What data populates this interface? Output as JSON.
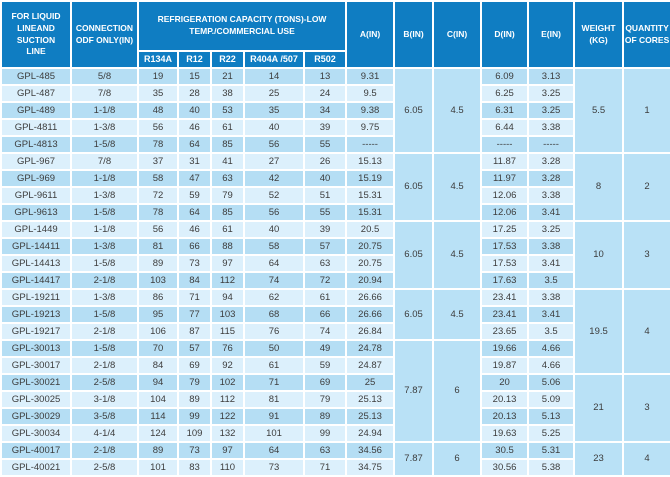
{
  "header": {
    "liquid_line": "FOR LIQUID\nLINEAND\nSUCTION\nLINE",
    "connection": "CONNECTION\nODF ONLY(IN)",
    "refrigeration": "REFRIGERATION CAPACITY (TONS)-LOW\nTEMP./COMMERCIAL USE",
    "refrigerants": [
      "R134A",
      "R12",
      "R22",
      "R404A /507",
      "R502"
    ],
    "a": "A(IN)",
    "b": "B(IN)",
    "c": "C(IN)",
    "d": "D(IN)",
    "e": "E(IN)",
    "weight": "WEIGHT\n(KG)",
    "quantity": "QUANTITY\nOF CORES"
  },
  "rows": [
    {
      "model": "GPL-485",
      "conn": "5/8",
      "r134a": "19",
      "r12": "15",
      "r22": "21",
      "r404a": "14",
      "r502": "13",
      "a": "9.31",
      "d": "6.09",
      "e": "3.13"
    },
    {
      "model": "GPL-487",
      "conn": "7/8",
      "r134a": "35",
      "r12": "28",
      "r22": "38",
      "r404a": "25",
      "r502": "24",
      "a": "9.5",
      "d": "6.25",
      "e": "3.25"
    },
    {
      "model": "GPL-489",
      "conn": "1-1/8",
      "r134a": "48",
      "r12": "40",
      "r22": "53",
      "r404a": "35",
      "r502": "34",
      "a": "9.38",
      "d": "6.31",
      "e": "3.25"
    },
    {
      "model": "GPL-4811",
      "conn": "1-3/8",
      "r134a": "56",
      "r12": "46",
      "r22": "61",
      "r404a": "40",
      "r502": "39",
      "a": "9.75",
      "d": "6.44",
      "e": "3.38"
    },
    {
      "model": "GPL-4813",
      "conn": "1-5/8",
      "r134a": "78",
      "r12": "64",
      "r22": "85",
      "r404a": "56",
      "r502": "55",
      "a": "-----",
      "d": "-----",
      "e": "-----"
    },
    {
      "model": "GPL-967",
      "conn": "7/8",
      "r134a": "37",
      "r12": "31",
      "r22": "41",
      "r404a": "27",
      "r502": "26",
      "a": "15.13",
      "d": "11.87",
      "e": "3.28"
    },
    {
      "model": "GPL-969",
      "conn": "1-1/8",
      "r134a": "58",
      "r12": "47",
      "r22": "63",
      "r404a": "42",
      "r502": "40",
      "a": "15.19",
      "d": "11.97",
      "e": "3.28"
    },
    {
      "model": "GPL-9611",
      "conn": "1-3/8",
      "r134a": "72",
      "r12": "59",
      "r22": "79",
      "r404a": "52",
      "r502": "51",
      "a": "15.31",
      "d": "12.06",
      "e": "3.38"
    },
    {
      "model": "GPL-9613",
      "conn": "1-5/8",
      "r134a": "78",
      "r12": "64",
      "r22": "85",
      "r404a": "56",
      "r502": "55",
      "a": "15.31",
      "d": "12.06",
      "e": "3.41"
    },
    {
      "model": "GPL-1449",
      "conn": "1-1/8",
      "r134a": "56",
      "r12": "46",
      "r22": "61",
      "r404a": "40",
      "r502": "39",
      "a": "20.5",
      "d": "17.25",
      "e": "3.25"
    },
    {
      "model": "GPL-14411",
      "conn": "1-3/8",
      "r134a": "81",
      "r12": "66",
      "r22": "88",
      "r404a": "58",
      "r502": "57",
      "a": "20.75",
      "d": "17.53",
      "e": "3.38"
    },
    {
      "model": "GPL-14413",
      "conn": "1-5/8",
      "r134a": "89",
      "r12": "73",
      "r22": "97",
      "r404a": "64",
      "r502": "63",
      "a": "20.75",
      "d": "17.53",
      "e": "3.41"
    },
    {
      "model": "GPL-14417",
      "conn": "2-1/8",
      "r134a": "103",
      "r12": "84",
      "r22": "112",
      "r404a": "74",
      "r502": "72",
      "a": "20.94",
      "d": "17.63",
      "e": "3.5"
    },
    {
      "model": "GPL-19211",
      "conn": "1-3/8",
      "r134a": "86",
      "r12": "71",
      "r22": "94",
      "r404a": "62",
      "r502": "61",
      "a": "26.66",
      "d": "23.41",
      "e": "3.38"
    },
    {
      "model": "GPL-19213",
      "conn": "1-5/8",
      "r134a": "95",
      "r12": "77",
      "r22": "103",
      "r404a": "68",
      "r502": "66",
      "a": "26.66",
      "d": "23.41",
      "e": "3.41"
    },
    {
      "model": "GPL-19217",
      "conn": "2-1/8",
      "r134a": "106",
      "r12": "87",
      "r22": "115",
      "r404a": "76",
      "r502": "74",
      "a": "26.84",
      "d": "23.65",
      "e": "3.5"
    },
    {
      "model": "GPL-30013",
      "conn": "1-5/8",
      "r134a": "70",
      "r12": "57",
      "r22": "76",
      "r404a": "50",
      "r502": "49",
      "a": "24.78",
      "d": "19.66",
      "e": "4.66"
    },
    {
      "model": "GPL-30017",
      "conn": "2-1/8",
      "r134a": "84",
      "r12": "69",
      "r22": "92",
      "r404a": "61",
      "r502": "59",
      "a": "24.87",
      "d": "19.87",
      "e": "4.66"
    },
    {
      "model": "GPL-30021",
      "conn": "2-5/8",
      "r134a": "94",
      "r12": "79",
      "r22": "102",
      "r404a": "71",
      "r502": "69",
      "a": "25",
      "d": "20",
      "e": "5.06"
    },
    {
      "model": "GPL-30025",
      "conn": "3-1/8",
      "r134a": "104",
      "r12": "89",
      "r22": "112",
      "r404a": "81",
      "r502": "79",
      "a": "25.13",
      "d": "20.13",
      "e": "5.09"
    },
    {
      "model": "GPL-30029",
      "conn": "3-5/8",
      "r134a": "114",
      "r12": "99",
      "r22": "122",
      "r404a": "91",
      "r502": "89",
      "a": "25.13",
      "d": "20.13",
      "e": "5.13"
    },
    {
      "model": "GPL-30034",
      "conn": "4-1/4",
      "r134a": "124",
      "r12": "109",
      "r22": "132",
      "r404a": "101",
      "r502": "99",
      "a": "24.94",
      "d": "19.63",
      "e": "5.25"
    },
    {
      "model": "GPL-40017",
      "conn": "2-1/8",
      "r134a": "89",
      "r12": "73",
      "r22": "97",
      "r404a": "64",
      "r502": "63",
      "a": "34.56",
      "d": "30.5",
      "e": "5.31"
    },
    {
      "model": "GPL-40021",
      "conn": "2-5/8",
      "r134a": "101",
      "r12": "83",
      "r22": "110",
      "r404a": "73",
      "r502": "71",
      "a": "34.75",
      "d": "30.56",
      "e": "5.38"
    }
  ],
  "b_groups": [
    {
      "start": 0,
      "span": 5,
      "b": "6.05",
      "c": "4.5"
    },
    {
      "start": 5,
      "span": 4,
      "b": "6.05",
      "c": "4.5"
    },
    {
      "start": 9,
      "span": 4,
      "b": "6.05",
      "c": "4.5"
    },
    {
      "start": 13,
      "span": 3,
      "b": "6.05",
      "c": "4.5"
    },
    {
      "start": 16,
      "span": 6,
      "b": "7.87",
      "c": "6"
    },
    {
      "start": 22,
      "span": 2,
      "b": "7.87",
      "c": "6"
    }
  ],
  "wq_groups": [
    {
      "start": 0,
      "span": 5,
      "weight": "5.5",
      "qty": "1"
    },
    {
      "start": 5,
      "span": 4,
      "weight": "8",
      "qty": "2"
    },
    {
      "start": 9,
      "span": 4,
      "weight": "10",
      "qty": "3"
    },
    {
      "start": 13,
      "span": 5,
      "weight": "19.5",
      "qty": "4"
    },
    {
      "start": 18,
      "span": 4,
      "weight": "21",
      "qty": "3"
    },
    {
      "start": 22,
      "span": 2,
      "weight": "23",
      "qty": "4"
    }
  ],
  "colors": {
    "header_bg": "#0f7dc2",
    "row_dark": "#b5def4",
    "row_light": "#dcf0fc",
    "merged_cell": "#b9e1f6",
    "border": "#ffffff",
    "header_text": "#ffffff",
    "body_text": "#3c3c3c"
  }
}
